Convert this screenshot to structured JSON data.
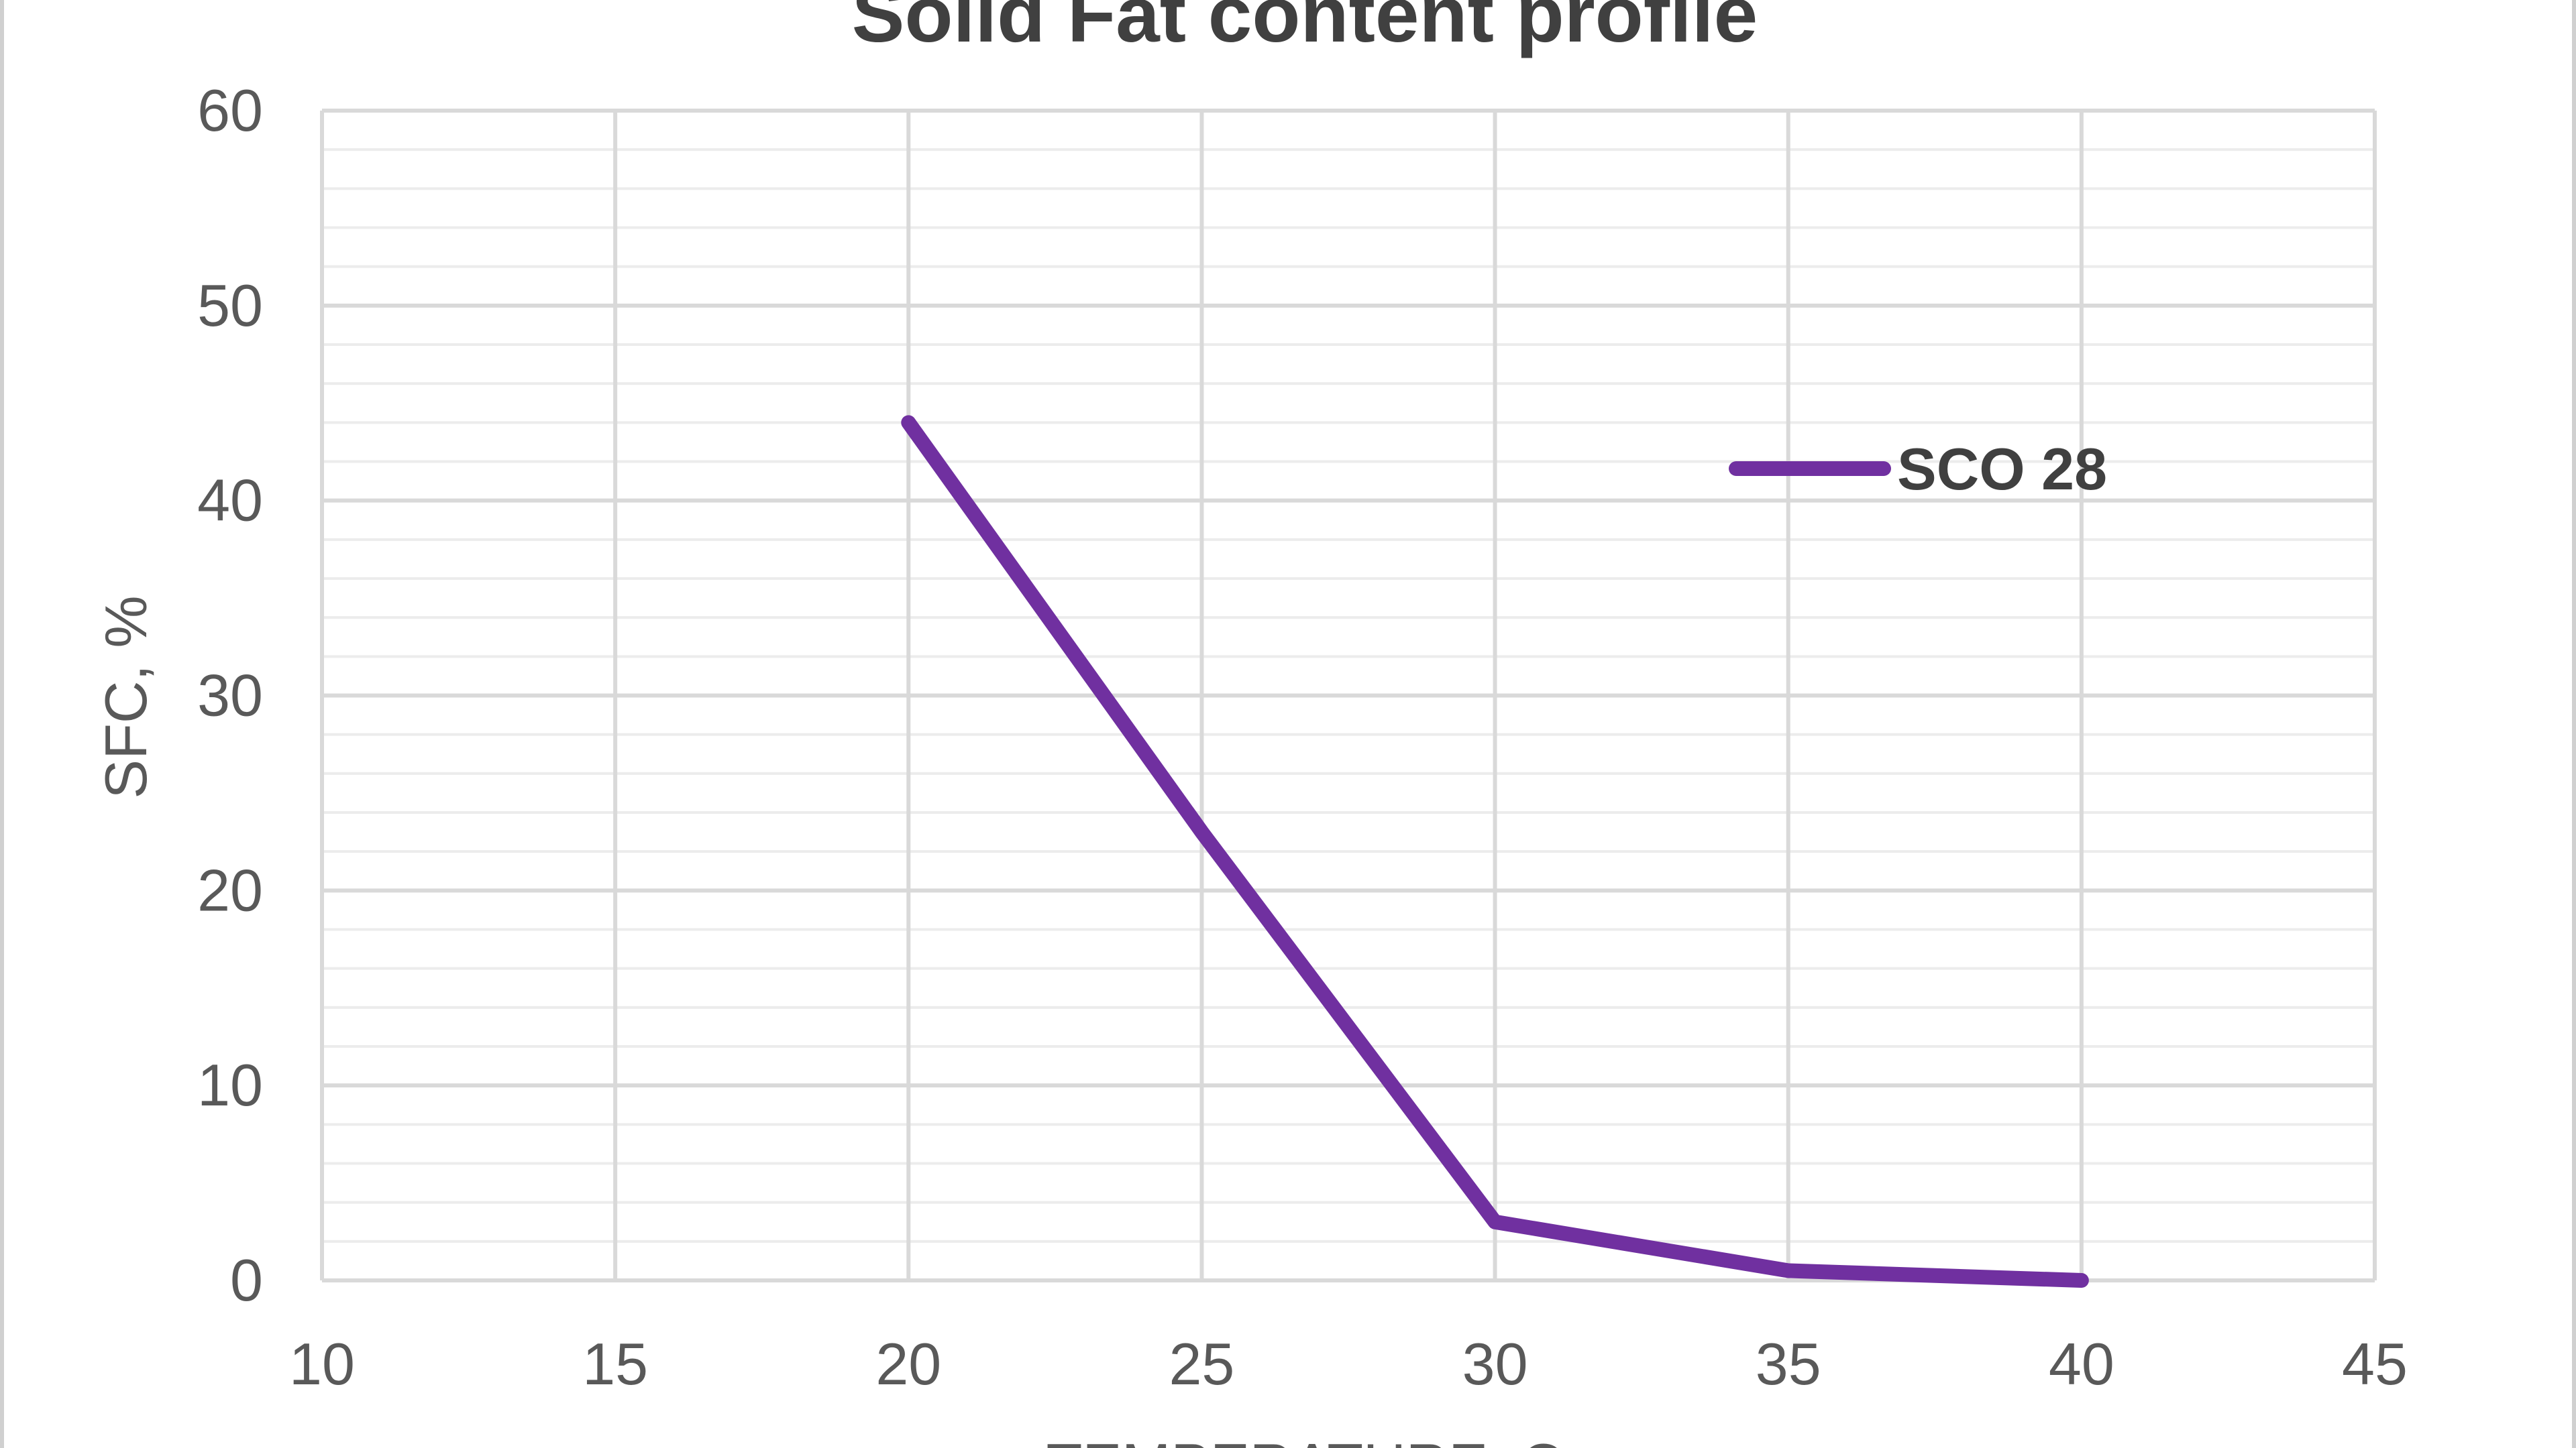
{
  "chart_data": {
    "type": "line",
    "title": "Solid Fat content profile",
    "xlabel": "TEMPERATURE, C",
    "ylabel": "SFC, %",
    "xlim": [
      10,
      45
    ],
    "ylim": [
      0,
      60
    ],
    "x_ticks": [
      10,
      15,
      20,
      25,
      30,
      35,
      40,
      45
    ],
    "y_ticks": [
      0,
      10,
      20,
      30,
      40,
      50,
      60
    ],
    "grid": true,
    "legend": "right",
    "series": [
      {
        "name": "SCO 28",
        "color": "#7030A0",
        "x": [
          20,
          25,
          30,
          35,
          40
        ],
        "y": [
          44,
          23,
          3,
          0.5,
          0
        ]
      }
    ]
  }
}
